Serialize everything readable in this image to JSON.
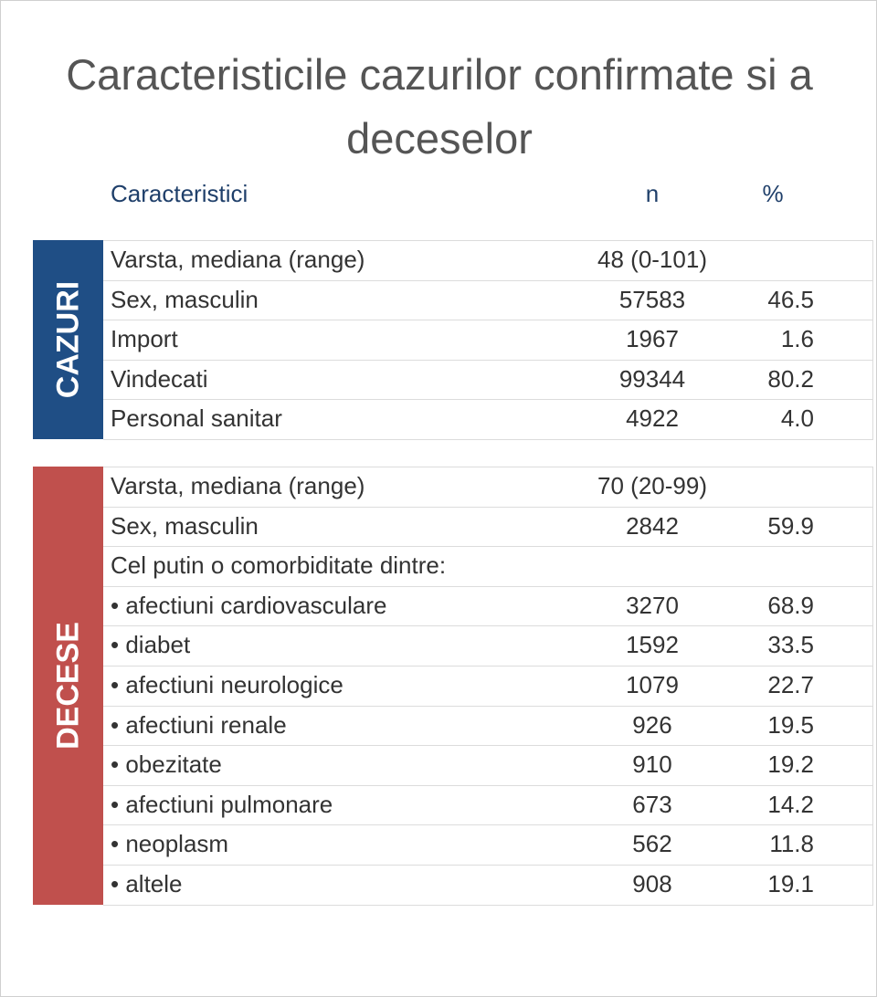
{
  "title": "Caracteristicile cazurilor confirmate si a deceselor",
  "header": [
    "Caracteristici",
    "n",
    "%"
  ],
  "sections": [
    {
      "label": "CAZURI",
      "color": "#1f4e85",
      "rows": [
        {
          "label": "Varsta, mediana (range)",
          "n": "48 (0-101)"
        },
        {
          "label": "Sex, masculin",
          "n": "57583",
          "pct": "46.5"
        },
        {
          "label": "Import",
          "n": "1967",
          "pct": "1.6"
        },
        {
          "label": "Vindecati",
          "n": "99344",
          "pct": "80.2"
        },
        {
          "label": "Personal sanitar",
          "n": "4922",
          "pct": "4.0"
        }
      ]
    },
    {
      "label": "DECESE",
      "color": "#c0504d",
      "rows": [
        {
          "label": "Varsta, mediana (range)",
          "n": "70 (20-99)"
        },
        {
          "label": "Sex, masculin",
          "n": "2842",
          "pct": "59.9"
        },
        {
          "label": "Cel putin o comorbiditate dintre:"
        },
        {
          "label": "• afectiuni cardiovasculare",
          "n": "3270",
          "pct": "68.9"
        },
        {
          "label": "• diabet",
          "n": "1592",
          "pct": "33.5"
        },
        {
          "label": "• afectiuni neurologice",
          "n": "1079",
          "pct": "22.7"
        },
        {
          "label": "• afectiuni renale",
          "n": "926",
          "pct": "19.5"
        },
        {
          "label": "• obezitate",
          "n": "910",
          "pct": "19.2"
        },
        {
          "label": "• afectiuni pulmonare",
          "n": "673",
          "pct": "14.2"
        },
        {
          "label": "• neoplasm",
          "n": "562",
          "pct": "11.8"
        },
        {
          "label": "• altele",
          "n": "908",
          "pct": "19.1"
        }
      ]
    }
  ]
}
